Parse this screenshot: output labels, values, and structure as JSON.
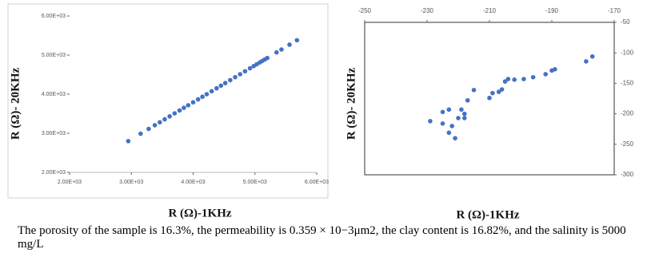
{
  "chart_data": [
    {
      "type": "scatter",
      "xlabel": "R (Ω)-1KHz",
      "ylabel": "R (Ω)- 20KHz",
      "color": "#4472c4",
      "x": [
        2950,
        3150,
        3280,
        3380,
        3460,
        3540,
        3620,
        3700,
        3780,
        3850,
        3920,
        4000,
        4080,
        4150,
        4220,
        4300,
        4380,
        4450,
        4520,
        4600,
        4680,
        4760,
        4840,
        4920,
        4980,
        5030,
        5080,
        5120,
        5160,
        5200,
        5350,
        5430,
        5560,
        5680
      ],
      "values": [
        2800,
        2989,
        3112,
        3206,
        3282,
        3358,
        3433,
        3509,
        3584,
        3651,
        3717,
        3792,
        3868,
        3934,
        4000,
        4076,
        4151,
        4218,
        4284,
        4359,
        4435,
        4510,
        4586,
        4662,
        4718,
        4766,
        4813,
        4851,
        4888,
        4926,
        5068,
        5143,
        5266,
        5380
      ],
      "xlim": [
        2000,
        6000
      ],
      "xticks": [
        {
          "value": 2000,
          "label": "2.00E+03"
        },
        {
          "value": 3000,
          "label": "3.00E+03"
        },
        {
          "value": 4000,
          "label": "4.00E+03"
        },
        {
          "value": 5000,
          "label": "5.00E+03"
        },
        {
          "value": 6000,
          "label": "6.00E+03"
        }
      ],
      "ylim": [
        2000,
        6000
      ],
      "yticks": [
        {
          "value": 2000,
          "label": "2.00E+03"
        },
        {
          "value": 3000,
          "label": "3.00E+03"
        },
        {
          "value": 4000,
          "label": "4.00E+03"
        },
        {
          "value": 5000,
          "label": "5.00E+03"
        },
        {
          "value": 6000,
          "label": "6.00E+03"
        }
      ],
      "x_axis_position": "bottom",
      "y_axis_position": "left",
      "grid": false
    },
    {
      "type": "scatter",
      "xlabel": "R (Ω)-1KHz",
      "ylabel": "R (Ω)- 20KHz",
      "color": "#4472c4",
      "x": [
        -229,
        -225,
        -223,
        -225,
        -223,
        -222,
        -221,
        -220,
        -218,
        -219,
        -218,
        -217,
        -215,
        -210,
        -209,
        -207,
        -206,
        -205,
        -204,
        -202,
        -199,
        -196,
        -192,
        -190,
        -189,
        -179,
        -177
      ],
      "values": [
        -212,
        -197,
        -193,
        -216,
        -231,
        -220,
        -240,
        -207,
        -207,
        -193,
        -200,
        -178,
        -161,
        -174,
        -166,
        -164,
        -160,
        -147,
        -143,
        -144,
        -143,
        -140,
        -135,
        -129,
        -127,
        -114,
        -106
      ],
      "xlim": [
        -250,
        -170
      ],
      "xticks": [
        -250,
        -230,
        -210,
        -190,
        -170
      ],
      "ylim": [
        -300,
        -50
      ],
      "yticks": [
        -300,
        -250,
        -200,
        -150,
        -100,
        -50
      ],
      "x_axis_position": "top",
      "y_axis_position": "right",
      "grid": false
    }
  ],
  "caption": "The porosity of the sample is 16.3%, the permeability is 0.359 × 10−3μm2, the clay content is 16.82%, and the salinity is 5000 mg/L"
}
